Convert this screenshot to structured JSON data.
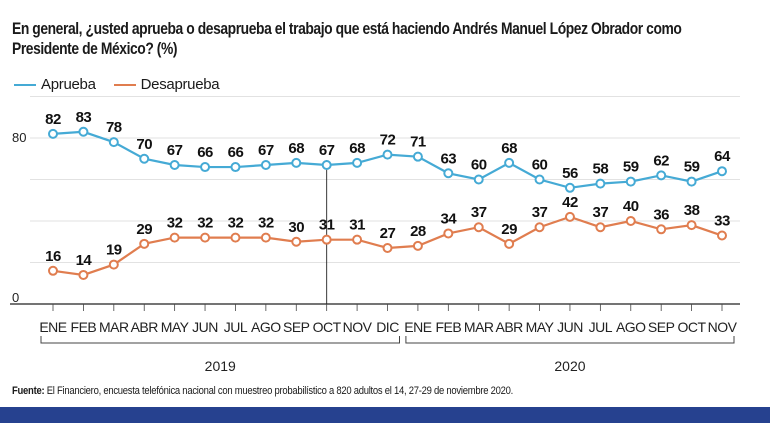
{
  "title": "En general, ¿usted aprueba o desaprueba el trabajo que está haciendo Andrés Manuel López Obrador como Presidente de México? (%)",
  "source_label": "Fuente:",
  "source_text": " El Financiero, encuesta telefónica nacional con muestreo probabilístico a 820 adultos el 14, 27-29 de noviembre 2020.",
  "colors": {
    "aprueba": "#45aad5",
    "desaprueba": "#e07d4f",
    "footer": "#26418f"
  },
  "chart_data": {
    "type": "line",
    "categories": [
      "ENE",
      "FEB",
      "MAR",
      "ABR",
      "MAY",
      "JUN",
      "JUL",
      "AGO",
      "SEP",
      "OCT",
      "NOV",
      "DIC",
      "ENE",
      "FEB",
      "MAR",
      "ABR",
      "MAY",
      "JUN",
      "JUL",
      "AGO",
      "SEP",
      "OCT",
      "NOV"
    ],
    "year_groups": [
      {
        "label": "2019",
        "start": 0,
        "end": 11
      },
      {
        "label": "2020",
        "start": 12,
        "end": 22
      }
    ],
    "series": [
      {
        "name": "Aprueba",
        "color": "#45aad5",
        "values": [
          82,
          83,
          78,
          70,
          67,
          66,
          66,
          67,
          68,
          67,
          68,
          72,
          71,
          63,
          60,
          68,
          60,
          56,
          58,
          59,
          62,
          59,
          64
        ]
      },
      {
        "name": "Desaprueba",
        "color": "#e07d4f",
        "values": [
          16,
          14,
          19,
          29,
          32,
          32,
          32,
          32,
          30,
          31,
          31,
          27,
          28,
          34,
          37,
          29,
          37,
          42,
          37,
          40,
          36,
          38,
          33
        ]
      }
    ],
    "yticks": [
      0,
      80
    ],
    "ylim": [
      0,
      100
    ],
    "grid": true,
    "legend": "top-left"
  }
}
